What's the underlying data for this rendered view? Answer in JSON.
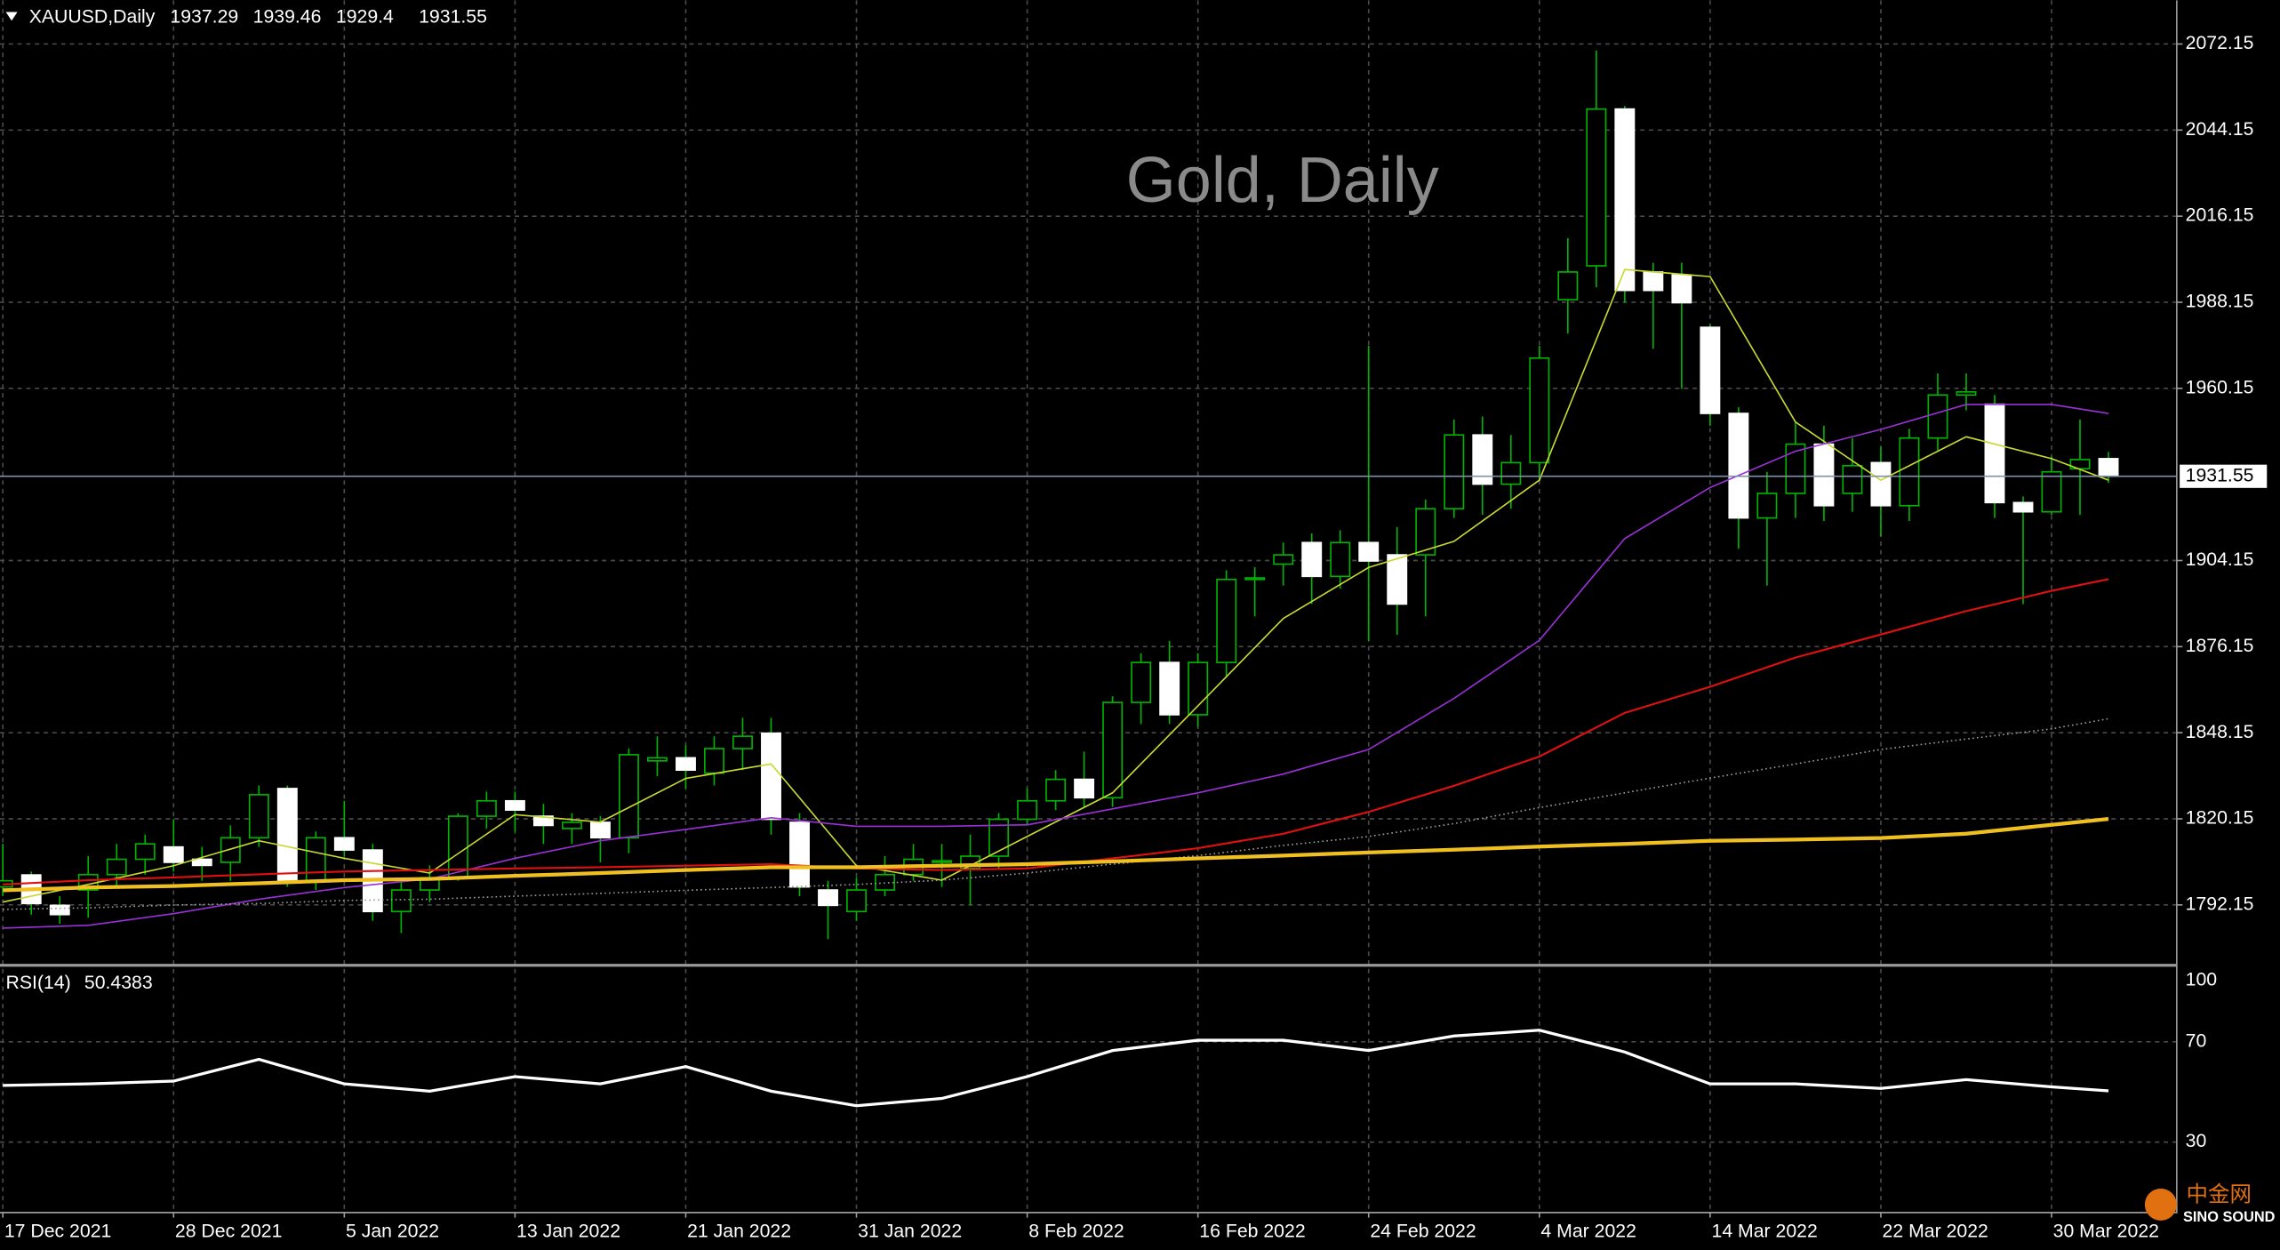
{
  "chart_data": {
    "type": "candlestick",
    "symbol": "XAUUSD,Daily",
    "watermark": "Gold, Daily",
    "categories": [
      "17 Dec 2021",
      null,
      null,
      null,
      null,
      null,
      "28 Dec 2021",
      null,
      null,
      null,
      null,
      null,
      "5 Jan 2022",
      null,
      null,
      null,
      null,
      null,
      "13 Jan 2022",
      null,
      null,
      null,
      null,
      null,
      "21 Jan 2022",
      null,
      null,
      null,
      null,
      null,
      "31 Jan 2022",
      null,
      null,
      null,
      null,
      null,
      "8 Feb 2022",
      null,
      null,
      null,
      null,
      null,
      "16 Feb 2022",
      null,
      null,
      null,
      null,
      null,
      "24 Feb 2022",
      null,
      null,
      null,
      null,
      null,
      "4 Mar 2022",
      null,
      null,
      null,
      null,
      null,
      "14 Mar 2022",
      null,
      null,
      null,
      null,
      null,
      "22 Mar 2022",
      null,
      null,
      null,
      null,
      null,
      "30 Mar 2022",
      null,
      null
    ],
    "ohlc": {
      "open": [
        1798,
        1801.9,
        1792,
        1797,
        1802,
        1807,
        1811,
        1807,
        1806,
        1814,
        1830,
        1800,
        1814,
        1810,
        1790,
        1797,
        1801,
        1821,
        1826,
        1821,
        1817,
        1819,
        1814,
        1839,
        1840,
        1835,
        1843,
        1848,
        1819,
        1797,
        1790,
        1797,
        1802,
        1806,
        1804,
        1808,
        1820,
        1826,
        1833,
        1827,
        1858,
        1871,
        1854,
        1871,
        1898,
        1903,
        1910,
        1899,
        1910,
        1906,
        1906,
        1921,
        1945,
        1929,
        1936,
        1989,
        2000,
        2051,
        1998,
        1997,
        1980,
        1952,
        1918,
        1926,
        1942,
        1926,
        1936,
        1922,
        1944,
        1958,
        1955,
        1923,
        1920,
        1934,
        1937.29
      ],
      "high": [
        1812,
        1803,
        1795,
        1808,
        1812,
        1815,
        1820,
        1811,
        1818,
        1831,
        1831,
        1816,
        1826,
        1812,
        1800,
        1805,
        1822,
        1829,
        1829,
        1825,
        1822,
        1821,
        1843,
        1847,
        1844,
        1847,
        1853,
        1853,
        1822,
        1800,
        1801,
        1808,
        1812,
        1812,
        1815,
        1822,
        1830,
        1836,
        1842,
        1860,
        1874,
        1878,
        1874,
        1901,
        1902,
        1910,
        1913,
        1914,
        1974,
        1915,
        1924,
        1950,
        1951,
        1945,
        1974,
        2009,
        2070,
        2052,
        2001,
        2001,
        1981,
        1954,
        1933,
        1949,
        1948,
        1944,
        1941,
        1947,
        1965,
        1965,
        1958,
        1925,
        1938,
        1950,
        1939.46
      ],
      "low": [
        1795,
        1789,
        1786,
        1788,
        1798,
        1802,
        1803,
        1800,
        1800,
        1811,
        1798,
        1797,
        1808,
        1787,
        1783,
        1793,
        1800,
        1817,
        1816,
        1812,
        1812,
        1806,
        1809,
        1834,
        1830,
        1831,
        1836,
        1815,
        1795,
        1781,
        1787,
        1795,
        1800,
        1798,
        1792,
        1804,
        1818,
        1823,
        1824,
        1824,
        1851,
        1851,
        1850,
        1866,
        1886,
        1896,
        1890,
        1895,
        1878,
        1880,
        1886,
        1918,
        1919,
        1921,
        1930,
        1978,
        1993,
        1988,
        1973,
        1960,
        1948,
        1908,
        1896,
        1918,
        1917,
        1920,
        1912,
        1917,
        1940,
        1953,
        1918,
        1890,
        1919,
        1919,
        1929.4
      ],
      "close": [
        1800,
        1792.6,
        1789,
        1802,
        1807,
        1812,
        1806,
        1805,
        1814,
        1828,
        1800,
        1814,
        1810,
        1790,
        1797,
        1801,
        1821,
        1826,
        1823,
        1818,
        1819,
        1814,
        1841,
        1840,
        1836,
        1843,
        1847,
        1820,
        1798,
        1792,
        1797,
        1802,
        1807,
        1806.5,
        1808,
        1820,
        1826,
        1833,
        1827,
        1858,
        1871,
        1854,
        1871,
        1898,
        1898.5,
        1906,
        1899,
        1910,
        1904,
        1890,
        1921,
        1945,
        1929,
        1936,
        1970,
        1998,
        2051,
        1992,
        1992,
        1988,
        1952,
        1918,
        1926,
        1942,
        1922,
        1935,
        1922,
        1944,
        1958,
        1959,
        1923,
        1920,
        1933,
        1937,
        1931.55
      ]
    },
    "bull_color": "#00b400",
    "bear_color": "#ffffff",
    "line_x": [
      0,
      3,
      6,
      9,
      12,
      15,
      18,
      21,
      24,
      27,
      30,
      33,
      36,
      39,
      42,
      45,
      48,
      51,
      54,
      57,
      60,
      63,
      66,
      69,
      72,
      74
    ],
    "lines": [
      {
        "color": "#c8d830",
        "values": [
          1793.1,
          1798.8,
          1804.9,
          1813.0,
          1807.3,
          1802.5,
          1821.5,
          1819.1,
          1833.3,
          1838.0,
          1804.9,
          1800.2,
          1814.4,
          1828.6,
          1856.9,
          1885.3,
          1901.9,
          1910.4,
          1930.3,
          1998.8,
          1996.5,
          1949.2,
          1930.3,
          1944.4,
          1937.3,
          1930.3
        ]
      },
      {
        "color": "#9a30d8",
        "values": [
          1784.6,
          1785.5,
          1789.3,
          1794.0,
          1797.8,
          1800.6,
          1807.3,
          1813.0,
          1816.7,
          1820.5,
          1817.7,
          1817.7,
          1818.2,
          1823.4,
          1828.6,
          1834.7,
          1842.7,
          1859.3,
          1878.2,
          1911.3,
          1927.9,
          1939.7,
          1946.8,
          1954.9,
          1954.9,
          1952.0
        ]
      },
      {
        "color": "#e01010",
        "values": [
          1798.8,
          1800.2,
          1801.1,
          1802.1,
          1803.0,
          1803.5,
          1804.0,
          1804.4,
          1804.9,
          1805.4,
          1804.0,
          1803.5,
          1804.0,
          1807.3,
          1810.6,
          1815.3,
          1822.4,
          1830.9,
          1840.4,
          1854.6,
          1863.1,
          1872.6,
          1880.1,
          1887.7,
          1894.3,
          1898.1
        ],
        "width": 1.3
      },
      {
        "color": "#9a9a9a",
        "dotted": true,
        "values": [
          1790.7,
          1791.2,
          1792.1,
          1792.6,
          1793.6,
          1794.0,
          1795.0,
          1795.9,
          1796.9,
          1797.8,
          1798.8,
          1800.2,
          1802.5,
          1805.4,
          1808.2,
          1811.5,
          1814.4,
          1818.6,
          1823.8,
          1828.6,
          1833.4,
          1838.0,
          1842.7,
          1846.1,
          1849.4,
          1852.7
        ]
      },
      {
        "color": "#f0c020",
        "width": 2.6,
        "values": [
          1796.9,
          1797.8,
          1798.3,
          1799.2,
          1800.2,
          1800.6,
          1801.6,
          1802.5,
          1803.5,
          1804.4,
          1804.4,
          1804.9,
          1805.4,
          1806.3,
          1807.3,
          1808.2,
          1809.2,
          1810.1,
          1811.1,
          1812.0,
          1813.0,
          1813.4,
          1813.9,
          1815.3,
          1818.2,
          1820.1
        ]
      }
    ],
    "xlim": [
      -0.1,
      76.4
    ],
    "ylim": [
      1772.74,
      2086.34
    ],
    "yticks": [
      2072.15,
      2044.15,
      2016.15,
      1988.15,
      1960.15,
      1904.15,
      1876.15,
      1848.15,
      1820.15,
      1792.15
    ],
    "grid": true,
    "rsi": {
      "label": "RSI(14)",
      "color": "#ffffff",
      "values": [
        52.6,
        53.2,
        54.3,
        63.0,
        53.2,
        50.3,
        56.1,
        53.2,
        60.1,
        50.3,
        44.5,
        47.4,
        56.1,
        66.5,
        70.6,
        70.6,
        66.5,
        72.3,
        74.6,
        65.9,
        53.2,
        53.2,
        51.4,
        54.9,
        52.0,
        50.4383
      ],
      "ylim": [
        2.2,
        99.6
      ],
      "yticks": [
        100,
        70,
        30
      ]
    },
    "logo": {
      "name": "中金网",
      "sub": "SINO SOUND"
    }
  }
}
